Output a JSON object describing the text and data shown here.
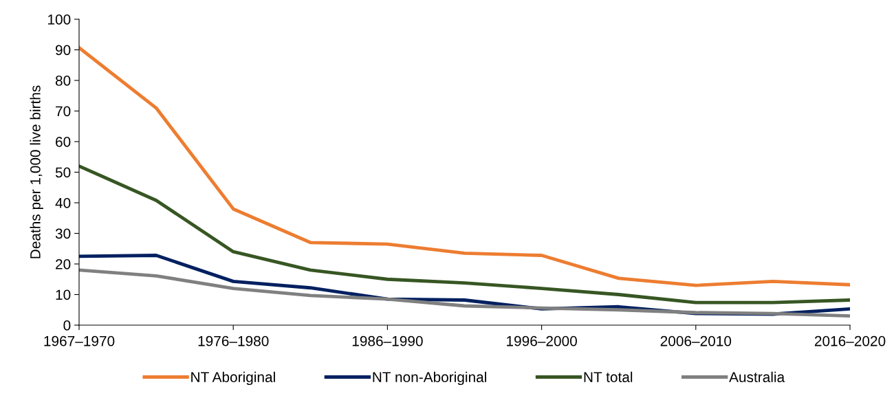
{
  "chart_data": {
    "type": "line",
    "ylabel": "Deaths per 1,000 live births",
    "categories": [
      "1967–1970",
      null,
      "1976–1980",
      null,
      "1986–1990",
      null,
      "1996–2000",
      null,
      "2006–2010",
      null,
      "2016–2020"
    ],
    "series": [
      {
        "name": "NT Aboriginal",
        "color": "#ed7d31",
        "values": [
          90.7,
          71,
          38,
          27,
          26.5,
          23.5,
          22.8,
          15.3,
          13,
          14.3,
          13.2
        ]
      },
      {
        "name": "NT non-Aboriginal",
        "color": "#002060",
        "values": [
          22.5,
          22.8,
          14.3,
          12.2,
          8.5,
          8.2,
          5.3,
          6,
          3.8,
          3.6,
          5.3
        ]
      },
      {
        "name": "NT total",
        "color": "#375623",
        "values": [
          52,
          40.8,
          24,
          18,
          15,
          13.8,
          12,
          10,
          7.4,
          7.4,
          8.2
        ]
      },
      {
        "name": "Australia",
        "color": "#808080",
        "values": [
          18,
          16.1,
          12,
          9.7,
          8.5,
          6.3,
          5.6,
          5,
          4.1,
          3.8,
          3
        ]
      }
    ],
    "ylim": [
      0,
      100
    ],
    "yticks": [
      0,
      10,
      20,
      30,
      40,
      50,
      60,
      70,
      80,
      90,
      100
    ],
    "grid": false,
    "legend": "bottom",
    "marker": "none",
    "line_style": "solid"
  }
}
